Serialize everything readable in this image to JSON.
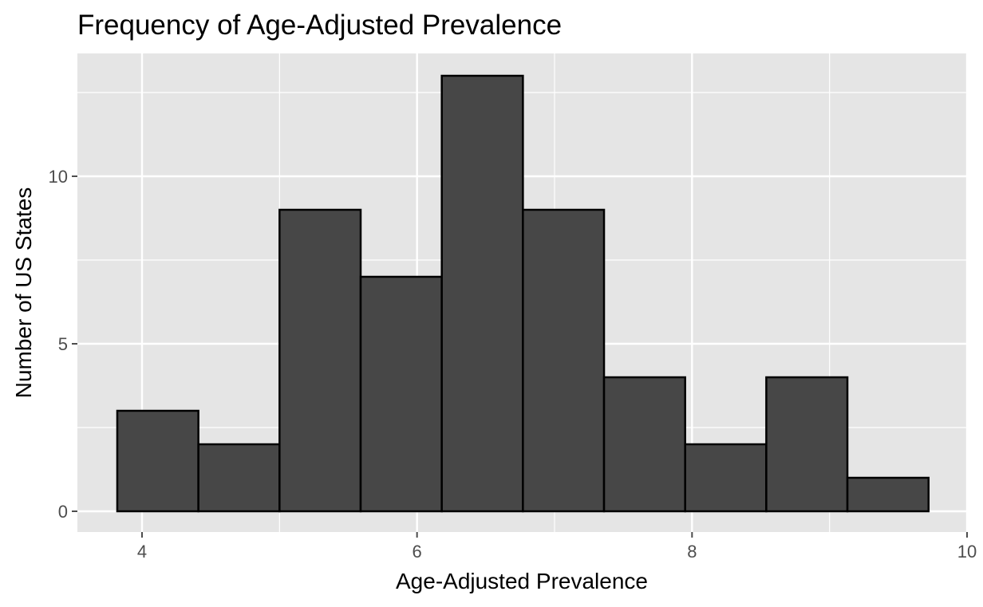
{
  "chart_data": {
    "type": "bar",
    "title": "Frequency of Age-Adjusted Prevalence",
    "xlabel": "Age-Adjusted Prevalence",
    "ylabel": "Number of US States",
    "xlim": [
      3.53,
      10.0
    ],
    "ylim": [
      0,
      13.5
    ],
    "x_ticks": [
      4,
      6,
      8,
      10
    ],
    "y_ticks": [
      0,
      5,
      10
    ],
    "grid": true,
    "bins": [
      {
        "x0": 3.82,
        "x1": 4.41,
        "count": 3
      },
      {
        "x0": 4.41,
        "x1": 5.0,
        "count": 2
      },
      {
        "x0": 5.0,
        "x1": 5.59,
        "count": 9
      },
      {
        "x0": 5.59,
        "x1": 6.18,
        "count": 7
      },
      {
        "x0": 6.18,
        "x1": 6.77,
        "count": 13
      },
      {
        "x0": 6.77,
        "x1": 7.36,
        "count": 9
      },
      {
        "x0": 7.36,
        "x1": 7.95,
        "count": 4
      },
      {
        "x0": 7.95,
        "x1": 8.54,
        "count": 2
      },
      {
        "x0": 8.54,
        "x1": 9.13,
        "count": 4
      },
      {
        "x0": 9.13,
        "x1": 9.72,
        "count": 1
      }
    ],
    "colors": {
      "panel": "#e5e5e5",
      "grid": "#ffffff",
      "bar_fill": "#474747",
      "bar_stroke": "#000000",
      "tick": "#4d4d4d"
    }
  }
}
